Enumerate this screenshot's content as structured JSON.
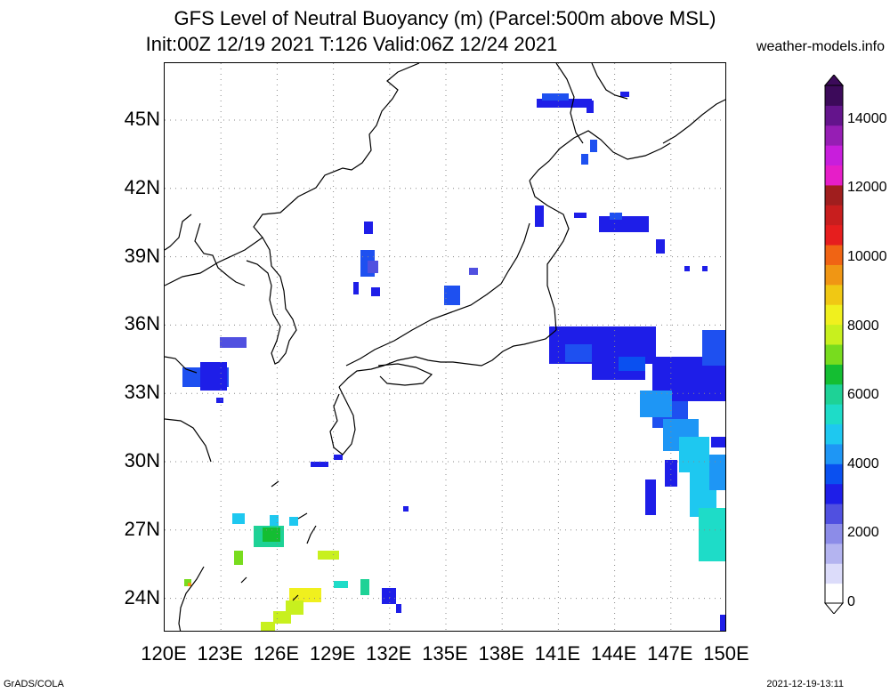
{
  "title": {
    "line1": "GFS Level of Neutral Buoyancy (m) (Parcel:500m above MSL)",
    "line2": "Init:00Z 12/19 2021 T:126 Valid:06Z 12/24 2021"
  },
  "source_label": "weather-models.info",
  "footer": {
    "left": "GrADS/COLA",
    "right": "2021-12-19-13:11"
  },
  "map": {
    "lat_labels": [
      "45N",
      "42N",
      "39N",
      "36N",
      "33N",
      "30N",
      "27N",
      "24N"
    ],
    "lon_labels": [
      "120E",
      "123E",
      "126E",
      "129E",
      "132E",
      "135E",
      "138E",
      "141E",
      "144E",
      "147E",
      "150E"
    ],
    "lat_range": [
      22.5,
      47.5
    ],
    "lon_range": [
      120,
      150
    ],
    "colors": {
      "coast": "#000000",
      "grid": "#888888"
    }
  },
  "colorbar": {
    "labels": [
      "14000",
      "12000",
      "10000",
      "8000",
      "6000",
      "4000",
      "2000",
      "0"
    ],
    "colors": [
      "#ffffff",
      "#dcdcfa",
      "#b4b4f0",
      "#8c8ce8",
      "#5050e0",
      "#1e1ee8",
      "#0a50f0",
      "#1e96f5",
      "#1ec8f0",
      "#1edcc8",
      "#1ed296",
      "#14be32",
      "#78dc1e",
      "#c8f01e",
      "#f0f01e",
      "#f0c814",
      "#f09614",
      "#f06414",
      "#e61e1e",
      "#c81e1e",
      "#a01e1e",
      "#e61ec8",
      "#c81edc",
      "#961eb4",
      "#64148c",
      "#3c0a5a"
    ]
  }
}
